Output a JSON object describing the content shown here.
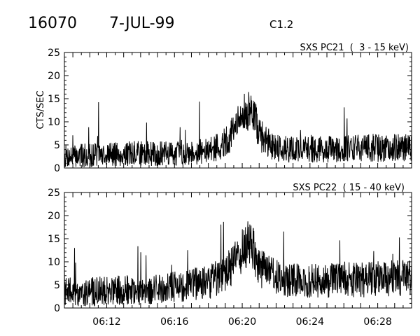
{
  "header": {
    "event_id": "16070",
    "date": "7-JUL-99",
    "flare_class": "C1.2"
  },
  "chart_data": [
    {
      "type": "line",
      "title": "SXS PC21  (  3 - 15 keV)",
      "ylabel": "CTS/SEC",
      "xlabel": "",
      "ylim": [
        0,
        25
      ],
      "yticks": [
        0,
        5,
        10,
        15,
        20,
        25
      ],
      "xlim": [
        "06:09:30",
        "06:30:00"
      ],
      "xticks": [],
      "series": [
        {
          "x": [
            "06:10",
            "06:11",
            "06:12",
            "06:13",
            "06:14",
            "06:15",
            "06:16",
            "06:17",
            "06:18",
            "06:19",
            "06:19:30",
            "06:20",
            "06:20:15",
            "06:20:30",
            "06:20:45",
            "06:21",
            "06:21:30",
            "06:22",
            "06:23",
            "06:24",
            "06:25",
            "06:26",
            "06:27",
            "06:28",
            "06:29",
            "06:30"
          ],
          "values": [
            2.5,
            2.8,
            3.0,
            3.0,
            3.2,
            3.0,
            3.2,
            3.5,
            3.5,
            5.5,
            8.0,
            11.0,
            12.5,
            12.0,
            10.5,
            7.5,
            5.5,
            4.5,
            4.0,
            4.2,
            4.0,
            4.2,
            4.5,
            4.3,
            4.5,
            4.5
          ]
        }
      ]
    },
    {
      "type": "line",
      "title": "SXS PC22  ( 15 - 40 keV)",
      "ylabel": "",
      "xlabel": "",
      "ylim": [
        0,
        25
      ],
      "yticks": [
        0,
        5,
        10,
        15,
        20,
        25
      ],
      "xlim": [
        "06:09:30",
        "06:30:00"
      ],
      "xticks": [
        "06:12",
        "06:16",
        "06:20",
        "06:24",
        "06:28"
      ],
      "series": [
        {
          "x": [
            "06:10",
            "06:11",
            "06:12",
            "06:13",
            "06:14",
            "06:15",
            "06:16",
            "06:17",
            "06:18",
            "06:19",
            "06:19:30",
            "06:20",
            "06:20:15",
            "06:20:30",
            "06:20:45",
            "06:21",
            "06:21:30",
            "06:22",
            "06:23",
            "06:24",
            "06:25",
            "06:26",
            "06:27",
            "06:28",
            "06:29",
            "06:30"
          ],
          "values": [
            3.5,
            3.5,
            3.8,
            4.0,
            3.8,
            4.0,
            4.5,
            5.0,
            5.5,
            7.5,
            10.0,
            12.5,
            14.0,
            13.5,
            12.0,
            9.0,
            7.5,
            6.5,
            6.0,
            6.0,
            6.0,
            6.2,
            6.0,
            6.3,
            6.5,
            6.5
          ]
        }
      ]
    }
  ]
}
